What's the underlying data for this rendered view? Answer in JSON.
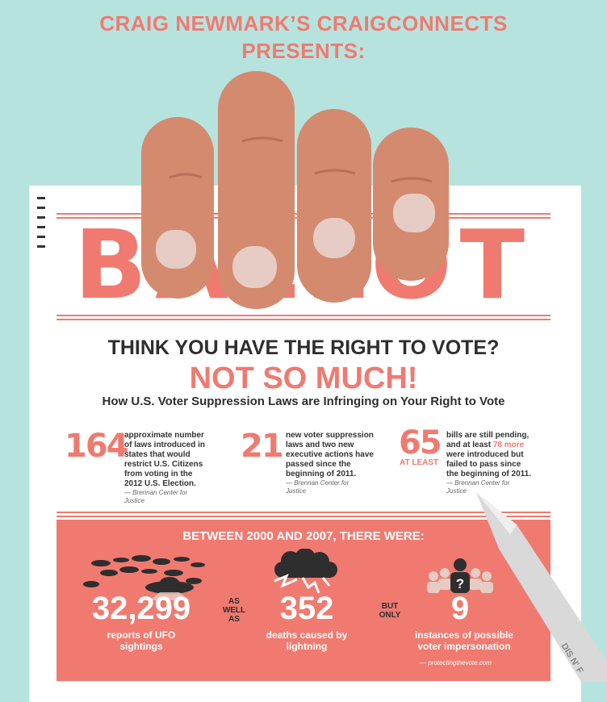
{
  "header": {
    "line1": "CRAIG NEWMARK’S CRAIGCONNECTS",
    "line2": "PRESENTS:"
  },
  "ballot_word": "BALLOT",
  "question": "THINK YOU HAVE THE RIGHT TO VOTE?",
  "answer": "NOT SO MUCH!",
  "subtitle": "How U.S. Voter Suppression Laws are Infringing on Your Right to Vote",
  "stats": [
    {
      "number": "164",
      "text_lines": [
        "approximate number",
        "of laws introduced in",
        "states that would",
        "restrict U.S. Citizens",
        "from voting in the",
        "2012 U.S. Election."
      ],
      "source_lines": [
        "— Brennan Center for",
        "Justice"
      ]
    },
    {
      "number": "21",
      "text_lines": [
        "new voter suppression",
        "laws and two new",
        "executive actions have",
        "passed since the",
        "beginning of 2011."
      ],
      "source_lines": [
        "— Brennan Center for",
        "Justice"
      ]
    },
    {
      "number": "65",
      "qualifier": "AT LEAST",
      "text_a": "bills are still pending,",
      "text_b_pre": "and at least ",
      "text_b_hl": "78 more",
      "text_c": "were introduced but",
      "text_d": "failed to pass since",
      "text_e": "the beginning of 2011.",
      "source_lines": [
        "— Brennan Center for",
        "Justice"
      ]
    }
  ],
  "panel": {
    "heading": "BETWEEN 2000 AND 2007, THERE WERE:",
    "items": [
      {
        "number": "32,299",
        "caption_lines": [
          "reports of UFO",
          "sightings"
        ]
      },
      {
        "number": "352",
        "caption_lines": [
          "deaths caused by",
          "lightning"
        ]
      },
      {
        "number": "9",
        "caption_lines": [
          "instances of possible",
          "voter impersonation"
        ]
      }
    ],
    "connector1": [
      "AS",
      "WELL",
      "AS"
    ],
    "connector2": [
      "BUT",
      "ONLY"
    ],
    "credit": "— protectingthevote.com"
  },
  "pencil_text": "DIS N' F",
  "icons": {
    "hand": "hand-icon",
    "ufo": "ufo-icon",
    "lightning": "lightning-cloud-icon",
    "voters": "voters-icon",
    "pencil": "pencil-icon"
  },
  "colors": {
    "background": "#b7e3df",
    "accent": "#f07a70",
    "dark": "#2e2e2e",
    "skin": "#d48a6f"
  }
}
